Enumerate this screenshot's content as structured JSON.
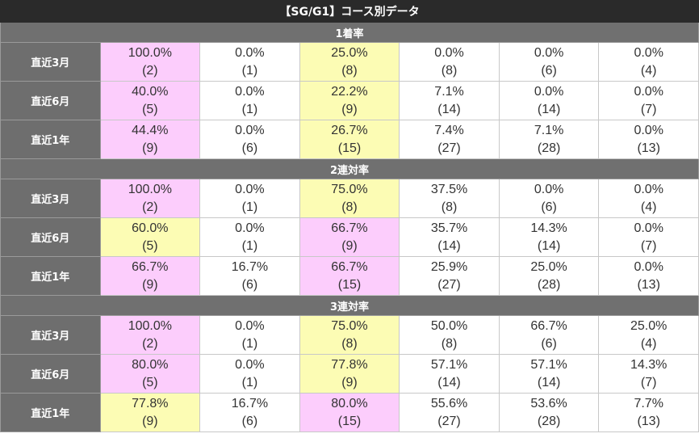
{
  "title": "【SG/G1】コース別データ",
  "colors": {
    "pink": "#fccdfc",
    "yellow": "#fcfcb4"
  },
  "sections": [
    {
      "label": "1着率",
      "rows": [
        {
          "label": "直近3月",
          "cells": [
            {
              "rate": "100.0%",
              "count": "(2)",
              "hl": "pink"
            },
            {
              "rate": "0.0%",
              "count": "(1)",
              "hl": ""
            },
            {
              "rate": "25.0%",
              "count": "(8)",
              "hl": "yellow"
            },
            {
              "rate": "0.0%",
              "count": "(8)",
              "hl": ""
            },
            {
              "rate": "0.0%",
              "count": "(6)",
              "hl": ""
            },
            {
              "rate": "0.0%",
              "count": "(4)",
              "hl": ""
            }
          ]
        },
        {
          "label": "直近6月",
          "cells": [
            {
              "rate": "40.0%",
              "count": "(5)",
              "hl": "pink"
            },
            {
              "rate": "0.0%",
              "count": "(1)",
              "hl": ""
            },
            {
              "rate": "22.2%",
              "count": "(9)",
              "hl": "yellow"
            },
            {
              "rate": "7.1%",
              "count": "(14)",
              "hl": ""
            },
            {
              "rate": "0.0%",
              "count": "(14)",
              "hl": ""
            },
            {
              "rate": "0.0%",
              "count": "(7)",
              "hl": ""
            }
          ]
        },
        {
          "label": "直近1年",
          "cells": [
            {
              "rate": "44.4%",
              "count": "(9)",
              "hl": "pink"
            },
            {
              "rate": "0.0%",
              "count": "(6)",
              "hl": ""
            },
            {
              "rate": "26.7%",
              "count": "(15)",
              "hl": "yellow"
            },
            {
              "rate": "7.4%",
              "count": "(27)",
              "hl": ""
            },
            {
              "rate": "7.1%",
              "count": "(28)",
              "hl": ""
            },
            {
              "rate": "0.0%",
              "count": "(13)",
              "hl": ""
            }
          ]
        }
      ]
    },
    {
      "label": "2連対率",
      "rows": [
        {
          "label": "直近3月",
          "cells": [
            {
              "rate": "100.0%",
              "count": "(2)",
              "hl": "pink"
            },
            {
              "rate": "0.0%",
              "count": "(1)",
              "hl": ""
            },
            {
              "rate": "75.0%",
              "count": "(8)",
              "hl": "yellow"
            },
            {
              "rate": "37.5%",
              "count": "(8)",
              "hl": ""
            },
            {
              "rate": "0.0%",
              "count": "(6)",
              "hl": ""
            },
            {
              "rate": "0.0%",
              "count": "(4)",
              "hl": ""
            }
          ]
        },
        {
          "label": "直近6月",
          "cells": [
            {
              "rate": "60.0%",
              "count": "(5)",
              "hl": "yellow"
            },
            {
              "rate": "0.0%",
              "count": "(1)",
              "hl": ""
            },
            {
              "rate": "66.7%",
              "count": "(9)",
              "hl": "pink"
            },
            {
              "rate": "35.7%",
              "count": "(14)",
              "hl": ""
            },
            {
              "rate": "14.3%",
              "count": "(14)",
              "hl": ""
            },
            {
              "rate": "0.0%",
              "count": "(7)",
              "hl": ""
            }
          ]
        },
        {
          "label": "直近1年",
          "cells": [
            {
              "rate": "66.7%",
              "count": "(9)",
              "hl": "pink"
            },
            {
              "rate": "16.7%",
              "count": "(6)",
              "hl": ""
            },
            {
              "rate": "66.7%",
              "count": "(15)",
              "hl": "pink"
            },
            {
              "rate": "25.9%",
              "count": "(27)",
              "hl": ""
            },
            {
              "rate": "25.0%",
              "count": "(28)",
              "hl": ""
            },
            {
              "rate": "0.0%",
              "count": "(13)",
              "hl": ""
            }
          ]
        }
      ]
    },
    {
      "label": "3連対率",
      "rows": [
        {
          "label": "直近3月",
          "cells": [
            {
              "rate": "100.0%",
              "count": "(2)",
              "hl": "pink"
            },
            {
              "rate": "0.0%",
              "count": "(1)",
              "hl": ""
            },
            {
              "rate": "75.0%",
              "count": "(8)",
              "hl": "yellow"
            },
            {
              "rate": "50.0%",
              "count": "(8)",
              "hl": ""
            },
            {
              "rate": "66.7%",
              "count": "(6)",
              "hl": ""
            },
            {
              "rate": "25.0%",
              "count": "(4)",
              "hl": ""
            }
          ]
        },
        {
          "label": "直近6月",
          "cells": [
            {
              "rate": "80.0%",
              "count": "(5)",
              "hl": "pink"
            },
            {
              "rate": "0.0%",
              "count": "(1)",
              "hl": ""
            },
            {
              "rate": "77.8%",
              "count": "(9)",
              "hl": "yellow"
            },
            {
              "rate": "57.1%",
              "count": "(14)",
              "hl": ""
            },
            {
              "rate": "57.1%",
              "count": "(14)",
              "hl": ""
            },
            {
              "rate": "14.3%",
              "count": "(7)",
              "hl": ""
            }
          ]
        },
        {
          "label": "直近1年",
          "cells": [
            {
              "rate": "77.8%",
              "count": "(9)",
              "hl": "yellow"
            },
            {
              "rate": "16.7%",
              "count": "(6)",
              "hl": ""
            },
            {
              "rate": "80.0%",
              "count": "(15)",
              "hl": "pink"
            },
            {
              "rate": "55.6%",
              "count": "(27)",
              "hl": ""
            },
            {
              "rate": "53.6%",
              "count": "(28)",
              "hl": ""
            },
            {
              "rate": "7.7%",
              "count": "(13)",
              "hl": ""
            }
          ]
        }
      ]
    }
  ]
}
